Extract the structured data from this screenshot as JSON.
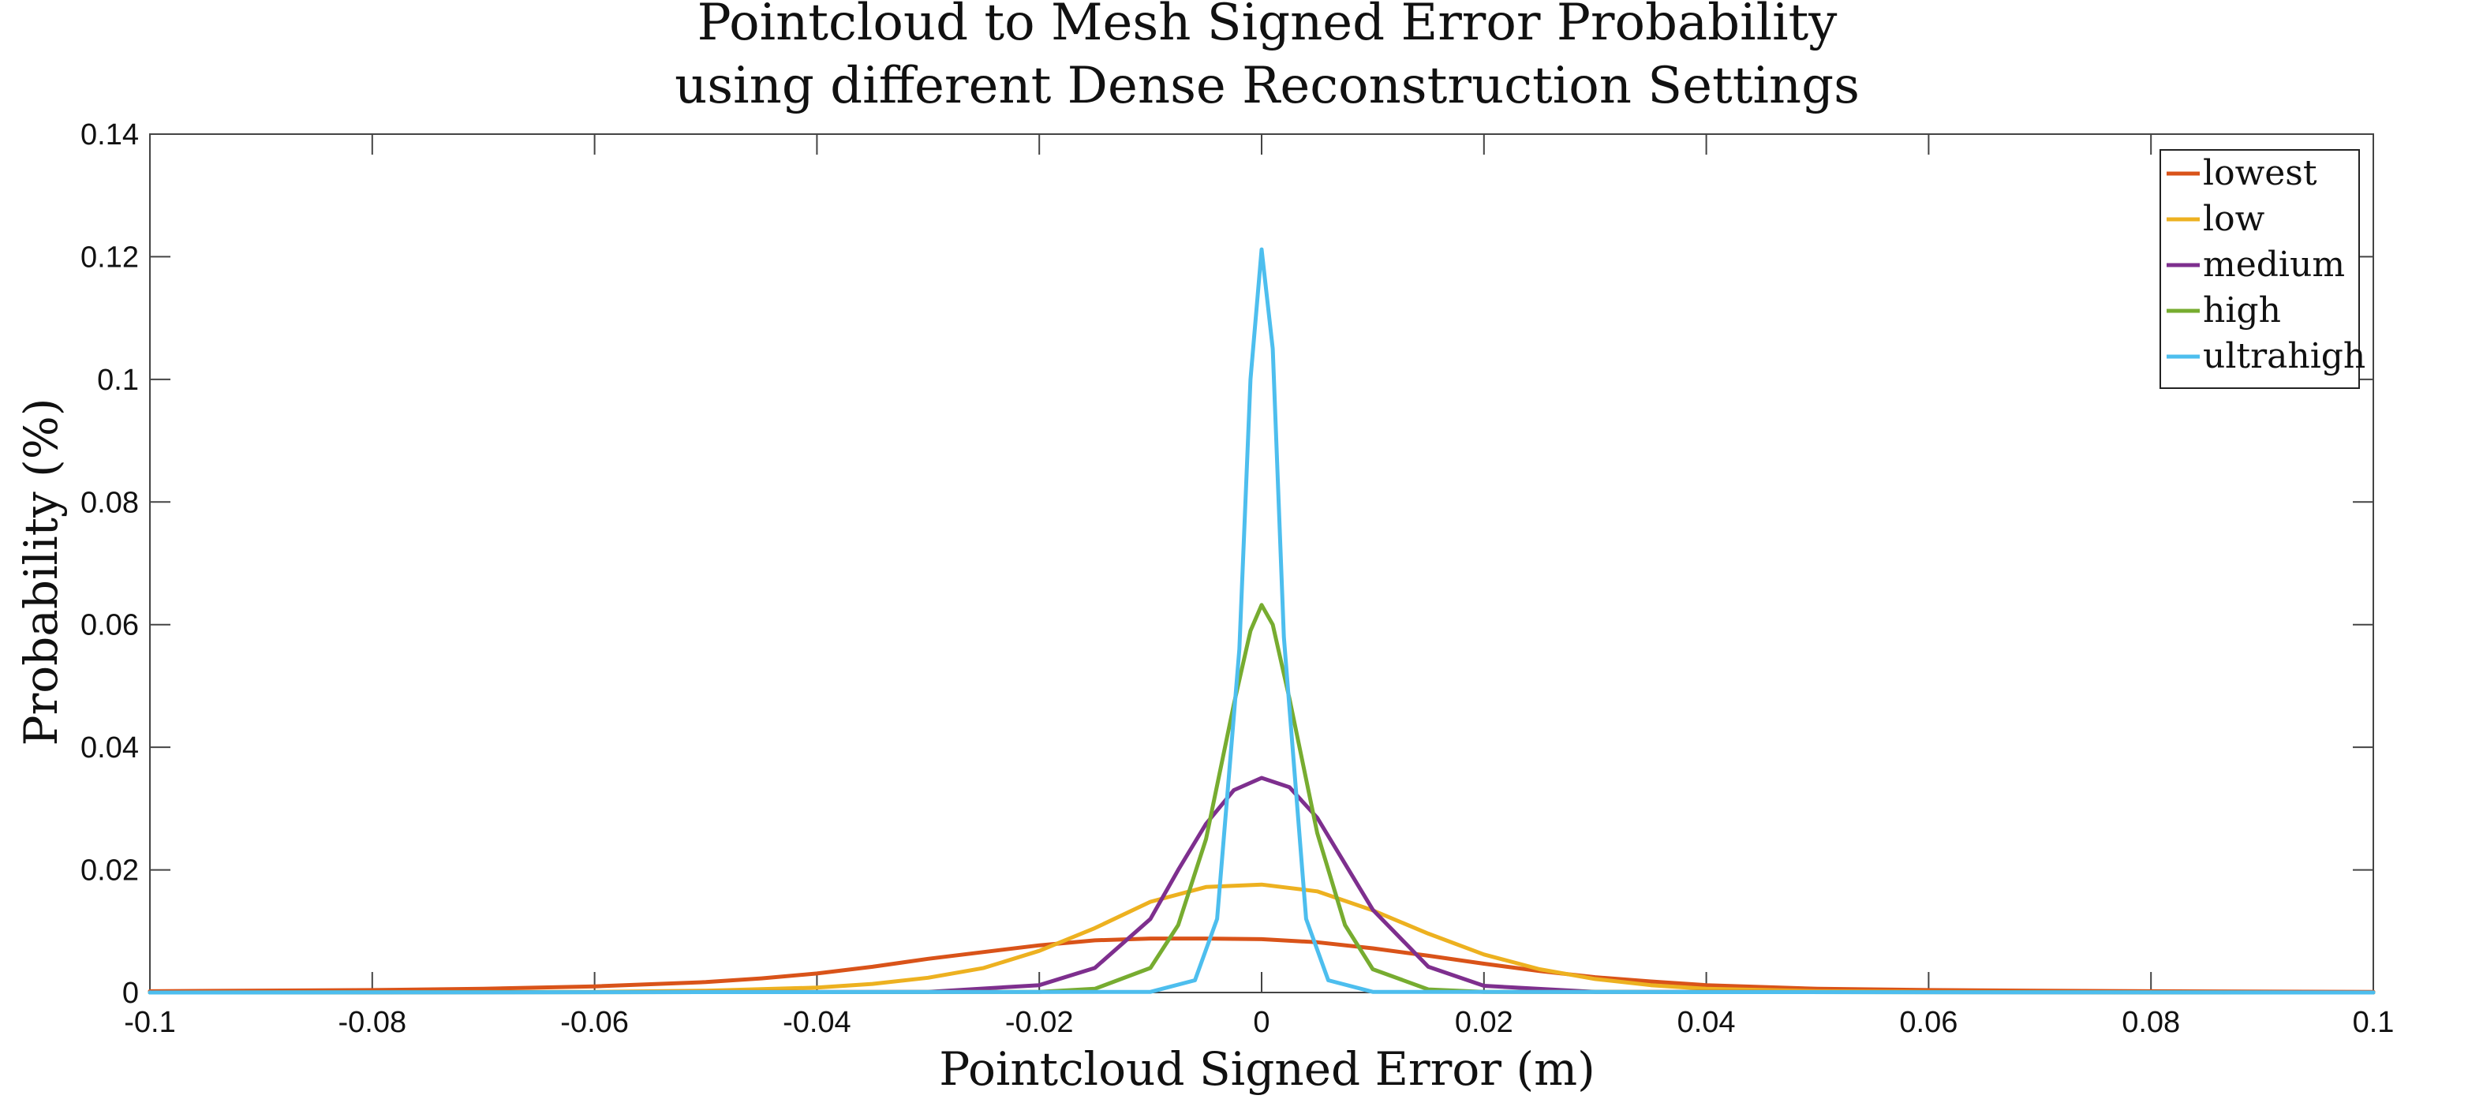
{
  "chart_data": {
    "type": "line",
    "title": "Pointcloud to Mesh Signed Error Probability",
    "subtitle": "using different Dense Reconstruction Settings",
    "xlabel": "Pointcloud Signed Error (m)",
    "ylabel": "Probability (%)",
    "xlim": [
      -0.1,
      0.1
    ],
    "ylim": [
      0,
      0.14
    ],
    "xticks": [
      -0.1,
      -0.08,
      -0.06,
      -0.04,
      -0.02,
      0,
      0.02,
      0.04,
      0.06,
      0.08,
      0.1
    ],
    "xtick_labels": [
      "-0.1",
      "-0.08",
      "-0.06",
      "-0.04",
      "-0.02",
      "0",
      "0.02",
      "0.04",
      "0.06",
      "0.08",
      "0.1"
    ],
    "yticks": [
      0,
      0.02,
      0.04,
      0.06,
      0.08,
      0.1,
      0.12,
      0.14
    ],
    "ytick_labels": [
      "0",
      "0.02",
      "0.04",
      "0.06",
      "0.08",
      "0.1",
      "0.12",
      "0.14"
    ],
    "grid": false,
    "legend_position": "top-right",
    "series": [
      {
        "name": "lowest",
        "color": "#D95319",
        "x": [
          -0.1,
          -0.08,
          -0.07,
          -0.06,
          -0.05,
          -0.045,
          -0.04,
          -0.035,
          -0.03,
          -0.025,
          -0.02,
          -0.015,
          -0.01,
          -0.005,
          0,
          0.005,
          0.01,
          0.015,
          0.02,
          0.025,
          0.03,
          0.035,
          0.04,
          0.05,
          0.06,
          0.07,
          0.08,
          0.1
        ],
        "y": [
          0.0002,
          0.0004,
          0.0006,
          0.001,
          0.0017,
          0.0023,
          0.0031,
          0.0042,
          0.0055,
          0.0066,
          0.0077,
          0.0085,
          0.0088,
          0.0088,
          0.0087,
          0.0082,
          0.0072,
          0.006,
          0.0047,
          0.0035,
          0.0025,
          0.0018,
          0.0012,
          0.0006,
          0.0004,
          0.0003,
          0.0002,
          0.0001
        ]
      },
      {
        "name": "low",
        "color": "#EDB120",
        "x": [
          -0.1,
          -0.06,
          -0.05,
          -0.04,
          -0.035,
          -0.03,
          -0.025,
          -0.02,
          -0.015,
          -0.01,
          -0.005,
          0,
          0.005,
          0.01,
          0.015,
          0.02,
          0.025,
          0.03,
          0.035,
          0.04,
          0.05,
          0.06,
          0.1
        ],
        "y": [
          0.0,
          0.0001,
          0.0003,
          0.0008,
          0.0014,
          0.0024,
          0.004,
          0.0068,
          0.0105,
          0.0148,
          0.0172,
          0.0176,
          0.0165,
          0.0134,
          0.0096,
          0.0062,
          0.0038,
          0.0022,
          0.0012,
          0.0006,
          0.0002,
          0.0001,
          0.0
        ]
      },
      {
        "name": "medium",
        "color": "#7E2F8E",
        "x": [
          -0.1,
          -0.03,
          -0.02,
          -0.015,
          -0.01,
          -0.0075,
          -0.005,
          -0.0025,
          0,
          0.0025,
          0.005,
          0.0075,
          0.01,
          0.015,
          0.02,
          0.03,
          0.1
        ],
        "y": [
          0.0,
          0.0001,
          0.0012,
          0.004,
          0.012,
          0.02,
          0.0275,
          0.033,
          0.035,
          0.0335,
          0.0285,
          0.021,
          0.0135,
          0.0042,
          0.0011,
          0.0001,
          0.0
        ]
      },
      {
        "name": "high",
        "color": "#77AC30",
        "x": [
          -0.1,
          -0.02,
          -0.015,
          -0.01,
          -0.0075,
          -0.005,
          -0.0025,
          -0.001,
          0,
          0.001,
          0.0025,
          0.005,
          0.0075,
          0.01,
          0.015,
          0.02,
          0.1
        ],
        "y": [
          0.0,
          0.0001,
          0.0006,
          0.004,
          0.011,
          0.025,
          0.047,
          0.059,
          0.0632,
          0.06,
          0.048,
          0.026,
          0.011,
          0.0038,
          0.0005,
          0.0001,
          0.0
        ]
      },
      {
        "name": "ultrahigh",
        "color": "#4DBEEE",
        "x": [
          -0.1,
          -0.01,
          -0.006,
          -0.004,
          -0.002,
          -0.001,
          0,
          0.001,
          0.002,
          0.004,
          0.006,
          0.01,
          0.1
        ],
        "y": [
          0.0,
          0.0001,
          0.002,
          0.012,
          0.056,
          0.1,
          0.1212,
          0.105,
          0.058,
          0.012,
          0.002,
          0.0001,
          0.0
        ]
      }
    ]
  }
}
